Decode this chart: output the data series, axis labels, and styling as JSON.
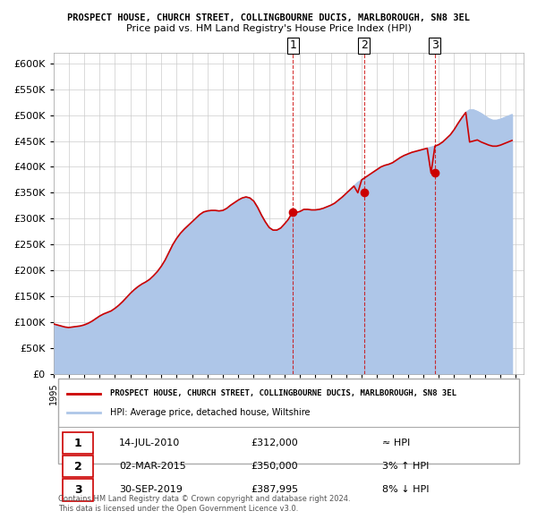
{
  "title": "PROSPECT HOUSE, CHURCH STREET, COLLINGBOURNE DUCIS, MARLBOROUGH, SN8 3EL",
  "subtitle": "Price paid vs. HM Land Registry's House Price Index (HPI)",
  "hpi_color": "#aec6e8",
  "price_color": "#cc0000",
  "marker_color": "#cc0000",
  "dashed_line_color": "#cc0000",
  "ylim": [
    0,
    620000
  ],
  "yticks": [
    0,
    50000,
    100000,
    150000,
    200000,
    250000,
    300000,
    350000,
    400000,
    450000,
    500000,
    550000,
    600000
  ],
  "ytick_labels": [
    "£0",
    "£50K",
    "£100K",
    "£150K",
    "£200K",
    "£250K",
    "£300K",
    "£350K",
    "£400K",
    "£450K",
    "£500K",
    "£550K",
    "£600K"
  ],
  "xlim_start": 1995.0,
  "xlim_end": 2025.5,
  "transactions": [
    {
      "year": 2010.54,
      "price": 312000,
      "label": "1"
    },
    {
      "year": 2015.16,
      "price": 350000,
      "label": "2"
    },
    {
      "year": 2019.75,
      "price": 387995,
      "label": "3"
    }
  ],
  "legend_line1": "PROSPECT HOUSE, CHURCH STREET, COLLINGBOURNE DUCIS, MARLBOROUGH, SN8 3EL",
  "legend_line2": "HPI: Average price, detached house, Wiltshire",
  "table_rows": [
    {
      "num": "1",
      "date": "14-JUL-2010",
      "price": "£312,000",
      "rel": "≈ HPI"
    },
    {
      "num": "2",
      "date": "02-MAR-2015",
      "price": "£350,000",
      "rel": "3% ↑ HPI"
    },
    {
      "num": "3",
      "date": "30-SEP-2019",
      "price": "£387,995",
      "rel": "8% ↓ HPI"
    }
  ],
  "footer": "Contains HM Land Registry data © Crown copyright and database right 2024.\nThis data is licensed under the Open Government Licence v3.0.",
  "hpi_data_x": [
    1995.0,
    1995.25,
    1995.5,
    1995.75,
    1996.0,
    1996.25,
    1996.5,
    1996.75,
    1997.0,
    1997.25,
    1997.5,
    1997.75,
    1998.0,
    1998.25,
    1998.5,
    1998.75,
    1999.0,
    1999.25,
    1999.5,
    1999.75,
    2000.0,
    2000.25,
    2000.5,
    2000.75,
    2001.0,
    2001.25,
    2001.5,
    2001.75,
    2002.0,
    2002.25,
    2002.5,
    2002.75,
    2003.0,
    2003.25,
    2003.5,
    2003.75,
    2004.0,
    2004.25,
    2004.5,
    2004.75,
    2005.0,
    2005.25,
    2005.5,
    2005.75,
    2006.0,
    2006.25,
    2006.5,
    2006.75,
    2007.0,
    2007.25,
    2007.5,
    2007.75,
    2008.0,
    2008.25,
    2008.5,
    2008.75,
    2009.0,
    2009.25,
    2009.5,
    2009.75,
    2010.0,
    2010.25,
    2010.5,
    2010.75,
    2011.0,
    2011.25,
    2011.5,
    2011.75,
    2012.0,
    2012.25,
    2012.5,
    2012.75,
    2013.0,
    2013.25,
    2013.5,
    2013.75,
    2014.0,
    2014.25,
    2014.5,
    2014.75,
    2015.0,
    2015.25,
    2015.5,
    2015.75,
    2016.0,
    2016.25,
    2016.5,
    2016.75,
    2017.0,
    2017.25,
    2017.5,
    2017.75,
    2018.0,
    2018.25,
    2018.5,
    2018.75,
    2019.0,
    2019.25,
    2019.5,
    2019.75,
    2020.0,
    2020.25,
    2020.5,
    2020.75,
    2021.0,
    2021.25,
    2021.5,
    2021.75,
    2022.0,
    2022.25,
    2022.5,
    2022.75,
    2023.0,
    2023.25,
    2023.5,
    2023.75,
    2024.0,
    2024.25,
    2024.5,
    2024.75
  ],
  "hpi_data_y": [
    97000,
    95000,
    93000,
    91000,
    90000,
    91000,
    92000,
    93000,
    95000,
    98000,
    102000,
    107000,
    112000,
    116000,
    119000,
    122000,
    127000,
    133000,
    140000,
    148000,
    156000,
    163000,
    169000,
    174000,
    178000,
    183000,
    190000,
    198000,
    208000,
    220000,
    235000,
    250000,
    262000,
    272000,
    280000,
    287000,
    294000,
    301000,
    308000,
    313000,
    315000,
    316000,
    316000,
    315000,
    316000,
    320000,
    326000,
    331000,
    336000,
    340000,
    342000,
    340000,
    334000,
    322000,
    307000,
    294000,
    283000,
    278000,
    278000,
    282000,
    290000,
    299000,
    308000,
    312000,
    314000,
    318000,
    318000,
    317000,
    317000,
    318000,
    320000,
    323000,
    326000,
    330000,
    336000,
    342000,
    349000,
    356000,
    363000,
    370000,
    375000,
    380000,
    385000,
    390000,
    395000,
    400000,
    403000,
    405000,
    408000,
    413000,
    418000,
    422000,
    425000,
    428000,
    430000,
    432000,
    434000,
    436000,
    438000,
    440000,
    443000,
    448000,
    455000,
    462000,
    472000,
    484000,
    495000,
    505000,
    510000,
    510000,
    507000,
    503000,
    498000,
    493000,
    490000,
    490000,
    492000,
    495000,
    498000,
    501000
  ],
  "price_data_x": [
    1995.0,
    1995.25,
    1995.5,
    1995.75,
    1996.0,
    1996.25,
    1996.5,
    1996.75,
    1997.0,
    1997.25,
    1997.5,
    1997.75,
    1998.0,
    1998.25,
    1998.5,
    1998.75,
    1999.0,
    1999.25,
    1999.5,
    1999.75,
    2000.0,
    2000.25,
    2000.5,
    2000.75,
    2001.0,
    2001.25,
    2001.5,
    2001.75,
    2002.0,
    2002.25,
    2002.5,
    2002.75,
    2003.0,
    2003.25,
    2003.5,
    2003.75,
    2004.0,
    2004.25,
    2004.5,
    2004.75,
    2005.0,
    2005.25,
    2005.5,
    2005.75,
    2006.0,
    2006.25,
    2006.5,
    2006.75,
    2007.0,
    2007.25,
    2007.5,
    2007.75,
    2008.0,
    2008.25,
    2008.5,
    2008.75,
    2009.0,
    2009.25,
    2009.5,
    2009.75,
    2010.0,
    2010.25,
    2010.5,
    2010.75,
    2011.0,
    2011.25,
    2011.5,
    2011.75,
    2012.0,
    2012.25,
    2012.5,
    2012.75,
    2013.0,
    2013.25,
    2013.5,
    2013.75,
    2014.0,
    2014.25,
    2014.5,
    2014.75,
    2015.0,
    2015.25,
    2015.5,
    2015.75,
    2016.0,
    2016.25,
    2016.5,
    2016.75,
    2017.0,
    2017.25,
    2017.5,
    2017.75,
    2018.0,
    2018.25,
    2018.5,
    2018.75,
    2019.0,
    2019.25,
    2019.5,
    2019.75,
    2020.0,
    2020.25,
    2020.5,
    2020.75,
    2021.0,
    2021.25,
    2021.5,
    2021.75,
    2022.0,
    2022.25,
    2022.5,
    2022.75,
    2023.0,
    2023.25,
    2023.5,
    2023.75,
    2024.0,
    2024.25,
    2024.5,
    2024.75
  ],
  "price_data_y": [
    97000,
    95000,
    93000,
    91000,
    90000,
    91000,
    92000,
    93000,
    95000,
    98000,
    102000,
    107000,
    112000,
    116000,
    119000,
    122000,
    127000,
    133000,
    140000,
    148000,
    156000,
    163000,
    169000,
    174000,
    178000,
    183000,
    190000,
    198000,
    208000,
    220000,
    235000,
    250000,
    262000,
    272000,
    280000,
    287000,
    294000,
    301000,
    308000,
    313000,
    315000,
    316000,
    316000,
    315000,
    316000,
    320000,
    326000,
    331000,
    336000,
    340000,
    342000,
    340000,
    334000,
    322000,
    307000,
    294000,
    283000,
    278000,
    278000,
    282000,
    290000,
    299000,
    312000,
    312000,
    314000,
    318000,
    318000,
    317000,
    317000,
    318000,
    320000,
    323000,
    326000,
    330000,
    336000,
    342000,
    349000,
    356000,
    363000,
    350000,
    375000,
    380000,
    385000,
    390000,
    395000,
    400000,
    403000,
    405000,
    408000,
    413000,
    418000,
    422000,
    425000,
    428000,
    430000,
    432000,
    434000,
    436000,
    387995,
    440000,
    443000,
    448000,
    455000,
    462000,
    472000,
    484000,
    495000,
    505000,
    448000,
    450000,
    452000,
    448000,
    445000,
    442000,
    440000,
    440000,
    442000,
    445000,
    448000,
    451000
  ]
}
